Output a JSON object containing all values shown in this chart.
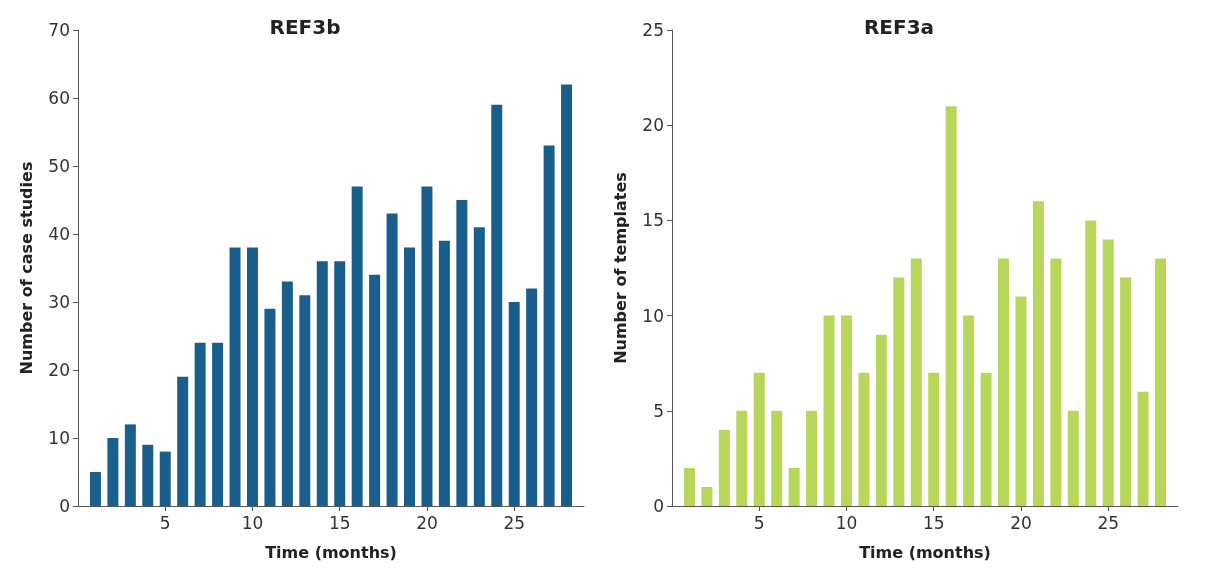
{
  "chart_data": [
    {
      "type": "bar",
      "title": "REF3b",
      "xlabel": "Time (months)",
      "ylabel": "Number of case studies",
      "x": [
        1,
        2,
        3,
        4,
        5,
        6,
        7,
        8,
        9,
        10,
        11,
        12,
        13,
        14,
        15,
        16,
        17,
        18,
        19,
        20,
        21,
        22,
        23,
        24,
        25,
        26,
        27,
        28
      ],
      "values": [
        5,
        10,
        12,
        9,
        8,
        19,
        24,
        24,
        38,
        38,
        29,
        33,
        31,
        36,
        36,
        47,
        34,
        43,
        38,
        47,
        39,
        45,
        41,
        59,
        30,
        32,
        53,
        62
      ],
      "color": "#1a5f8c",
      "xlim": [
        0,
        29
      ],
      "xticks": [
        5,
        10,
        15,
        20,
        25
      ],
      "ylim": [
        0,
        70
      ],
      "yticks": [
        0,
        10,
        20,
        30,
        40,
        50,
        60,
        70
      ],
      "grid": false
    },
    {
      "type": "bar",
      "title": "REF3a",
      "xlabel": "Time (months)",
      "ylabel": "Number of templates",
      "x": [
        1,
        2,
        3,
        4,
        5,
        6,
        7,
        8,
        9,
        10,
        11,
        12,
        13,
        14,
        15,
        16,
        17,
        18,
        19,
        20,
        21,
        22,
        23,
        24,
        25,
        26,
        27,
        28
      ],
      "values": [
        2,
        1,
        4,
        5,
        7,
        5,
        2,
        5,
        10,
        10,
        7,
        9,
        12,
        13,
        7,
        21,
        10,
        7,
        13,
        11,
        16,
        13,
        5,
        15,
        14,
        12,
        6,
        13
      ],
      "color": "#b8d65a",
      "xlim": [
        0,
        29
      ],
      "xticks": [
        5,
        10,
        15,
        20,
        25
      ],
      "ylim": [
        0,
        25
      ],
      "yticks": [
        0,
        5,
        10,
        15,
        20,
        25
      ],
      "grid": false
    }
  ]
}
